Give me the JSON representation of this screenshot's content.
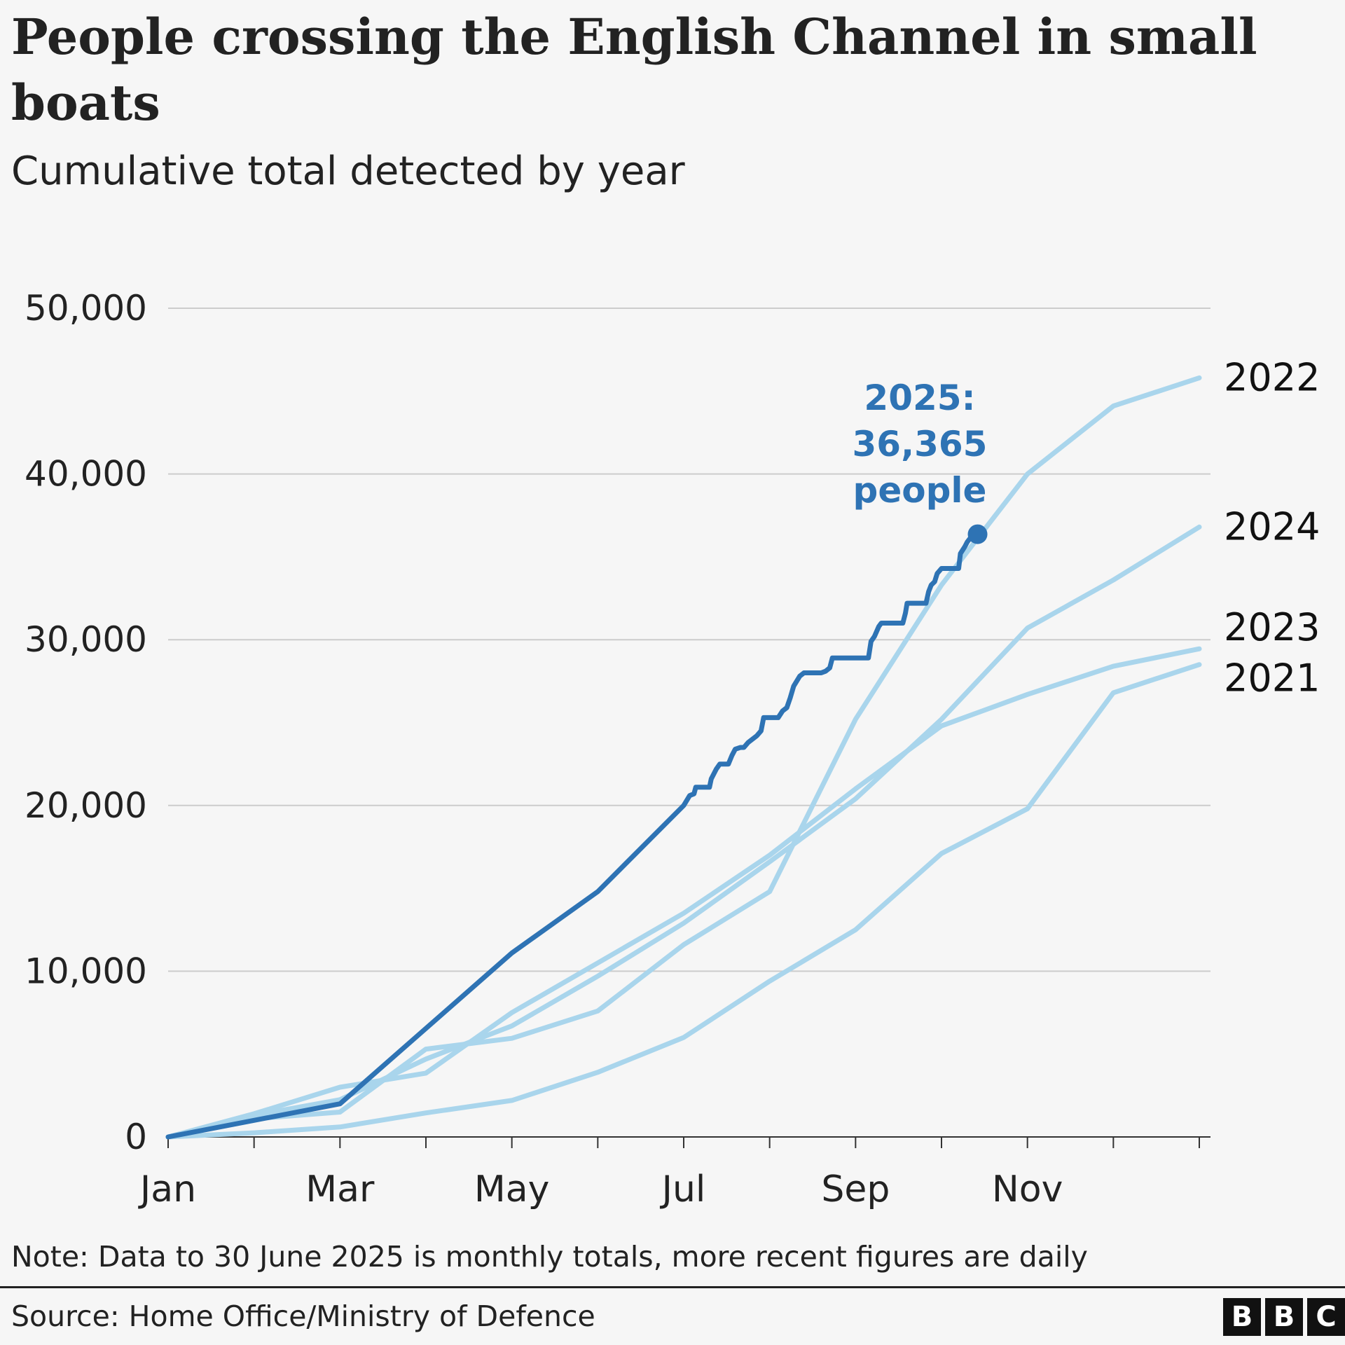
{
  "header": {
    "title": "People crossing the English Channel in small boats",
    "subtitle": "Cumulative total detected by year"
  },
  "footer": {
    "note": "Note: Data to 30 June 2025 is monthly totals, more recent figures are daily",
    "source": "Source: Home Office/Ministry of Defence",
    "logo": [
      "B",
      "B",
      "C"
    ]
  },
  "colors": {
    "highlight": "#2e73b4",
    "muted": "#a9d5ec",
    "grid": "#cccccc"
  },
  "chart_data": {
    "type": "line",
    "title": "People crossing the English Channel in small boats",
    "subtitle": "Cumulative total detected by year",
    "xlabel": "",
    "ylabel": "",
    "ylim": [
      0,
      50000
    ],
    "yticks": [
      0,
      10000,
      20000,
      30000,
      40000,
      50000
    ],
    "ytick_labels": [
      "0",
      "10,000",
      "20,000",
      "30,000",
      "40,000",
      "50,000"
    ],
    "xlim": [
      0,
      12
    ],
    "xticks": [
      0,
      1,
      2,
      3,
      4,
      5,
      6,
      7,
      8,
      9,
      10,
      11,
      12
    ],
    "xtick_labels": [
      "Jan",
      "",
      "Mar",
      "",
      "May",
      "",
      "Jul",
      "",
      "Sep",
      "",
      "Nov",
      "",
      ""
    ],
    "grid": "horizontal",
    "series": [
      {
        "name": "2021",
        "style": "muted",
        "points": [
          [
            0,
            0
          ],
          [
            1,
            250
          ],
          [
            2,
            600
          ],
          [
            3,
            1450
          ],
          [
            4,
            2200
          ],
          [
            5,
            3900
          ],
          [
            6,
            6000
          ],
          [
            7,
            9400
          ],
          [
            8,
            12500
          ],
          [
            9,
            17100
          ],
          [
            10,
            19800
          ],
          [
            11,
            26800
          ],
          [
            12,
            28500
          ]
        ]
      },
      {
        "name": "2023",
        "style": "muted",
        "points": [
          [
            0,
            0
          ],
          [
            1,
            1400
          ],
          [
            2,
            3000
          ],
          [
            3,
            3850
          ],
          [
            4,
            7500
          ],
          [
            5,
            10500
          ],
          [
            6,
            13500
          ],
          [
            7,
            17000
          ],
          [
            8,
            21000
          ],
          [
            9,
            24800
          ],
          [
            10,
            26700
          ],
          [
            11,
            28400
          ],
          [
            12,
            29450
          ]
        ]
      },
      {
        "name": "2024",
        "style": "muted",
        "points": [
          [
            0,
            0
          ],
          [
            1,
            1300
          ],
          [
            2,
            2250
          ],
          [
            3,
            4700
          ],
          [
            4,
            6700
          ],
          [
            5,
            9700
          ],
          [
            6,
            12900
          ],
          [
            7,
            16600
          ],
          [
            8,
            20400
          ],
          [
            9,
            25200
          ],
          [
            10,
            30700
          ],
          [
            11,
            33600
          ],
          [
            12,
            36800
          ]
        ]
      },
      {
        "name": "2022",
        "style": "muted",
        "points": [
          [
            0,
            0
          ],
          [
            1,
            1100
          ],
          [
            2,
            1500
          ],
          [
            3,
            5300
          ],
          [
            4,
            5950
          ],
          [
            5,
            7600
          ],
          [
            6,
            11600
          ],
          [
            7,
            14800
          ],
          [
            8,
            25200
          ],
          [
            9,
            33300
          ],
          [
            10,
            40000
          ],
          [
            11,
            44100
          ],
          [
            12,
            45800
          ]
        ]
      },
      {
        "name": "2025",
        "style": "highlight",
        "points": [
          [
            0,
            0
          ],
          [
            2,
            2000
          ],
          [
            4,
            11100
          ],
          [
            5,
            14800
          ],
          [
            6,
            20000
          ],
          [
            6.07,
            20600
          ],
          [
            6.12,
            20700
          ],
          [
            6.14,
            21100
          ],
          [
            6.3,
            21100
          ],
          [
            6.32,
            21600
          ],
          [
            6.38,
            22200
          ],
          [
            6.42,
            22500
          ],
          [
            6.52,
            22500
          ],
          [
            6.56,
            23000
          ],
          [
            6.6,
            23400
          ],
          [
            6.66,
            23500
          ],
          [
            6.7,
            23500
          ],
          [
            6.75,
            23800
          ],
          [
            6.85,
            24200
          ],
          [
            6.9,
            24500
          ],
          [
            6.93,
            25300
          ],
          [
            7.1,
            25300
          ],
          [
            7.15,
            25700
          ],
          [
            7.2,
            25900
          ],
          [
            7.24,
            26500
          ],
          [
            7.28,
            27200
          ],
          [
            7.35,
            27800
          ],
          [
            7.4,
            28000
          ],
          [
            7.6,
            28000
          ],
          [
            7.65,
            28100
          ],
          [
            7.7,
            28300
          ],
          [
            7.73,
            28900
          ],
          [
            8.15,
            28900
          ],
          [
            8.18,
            29900
          ],
          [
            8.22,
            30200
          ],
          [
            8.27,
            30800
          ],
          [
            8.3,
            31000
          ],
          [
            8.55,
            31000
          ],
          [
            8.58,
            31600
          ],
          [
            8.6,
            32200
          ],
          [
            8.82,
            32200
          ],
          [
            8.85,
            32900
          ],
          [
            8.88,
            33300
          ],
          [
            8.92,
            33500
          ],
          [
            8.95,
            34000
          ],
          [
            9.0,
            34300
          ],
          [
            9.2,
            34300
          ],
          [
            9.22,
            35200
          ],
          [
            9.27,
            35600
          ],
          [
            9.3,
            35900
          ],
          [
            9.36,
            36300
          ],
          [
            9.42,
            36365
          ]
        ]
      }
    ],
    "labels": [
      {
        "series": "2022",
        "text": "2022"
      },
      {
        "series": "2024",
        "text": "2024"
      },
      {
        "series": "2023",
        "text": "2023"
      },
      {
        "series": "2021",
        "text": "2021"
      }
    ],
    "annotation": {
      "series": "2025",
      "lines": [
        "2025:",
        "36,365",
        "people"
      ],
      "value": 36365
    }
  }
}
